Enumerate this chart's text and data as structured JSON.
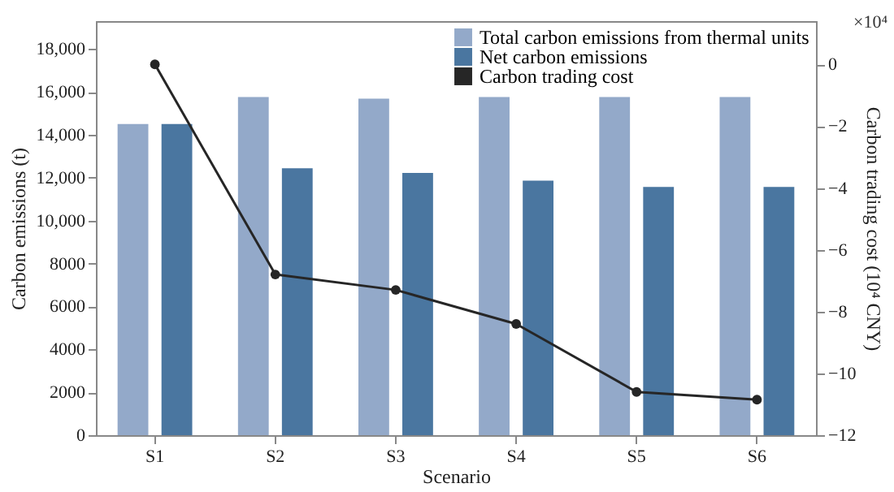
{
  "chart_data": {
    "type": "bar",
    "xlabel": "Scenario",
    "ylabel": "Carbon emissions (t)",
    "y2label": "Carbon trading cost (10⁴ CNY)",
    "annotations": [
      "×10⁴"
    ],
    "categories": [
      "S1",
      "S2",
      "S3",
      "S4",
      "S5",
      "S6"
    ],
    "series": [
      {
        "name": "Total carbon emissions from thermal units",
        "color": "#93a9c9",
        "values": [
          14500,
          15760,
          15690,
          15760,
          15760,
          15760
        ]
      },
      {
        "name": "Net carbon emissions",
        "color": "#4a76a0",
        "values": [
          14500,
          12440,
          12220,
          11860,
          11570,
          11570
        ]
      },
      {
        "name": "Carbon trading cost",
        "type": "line",
        "axis": "y2",
        "color": "#262626",
        "values": [
          0,
          -6.8,
          -7.3,
          -8.4,
          -10.6,
          -10.85
        ]
      }
    ],
    "ylim": [
      0,
      19300
    ],
    "yticks": [
      0,
      2000,
      4000,
      6000,
      8000,
      {
        "value": 10000,
        "label": "10,000"
      },
      {
        "value": 12000,
        "label": "12,000"
      },
      {
        "value": 14000,
        "label": "14,000"
      },
      {
        "value": 16000,
        "label": "16,000"
      },
      {
        "value": 18000,
        "label": "18,000"
      }
    ],
    "y2lim": [
      -12,
      1.4
    ],
    "y2ticks": [
      -12,
      -10,
      -8,
      -6,
      -4,
      -2,
      0
    ],
    "legend": "top right",
    "marker": "circle",
    "grid": false
  }
}
